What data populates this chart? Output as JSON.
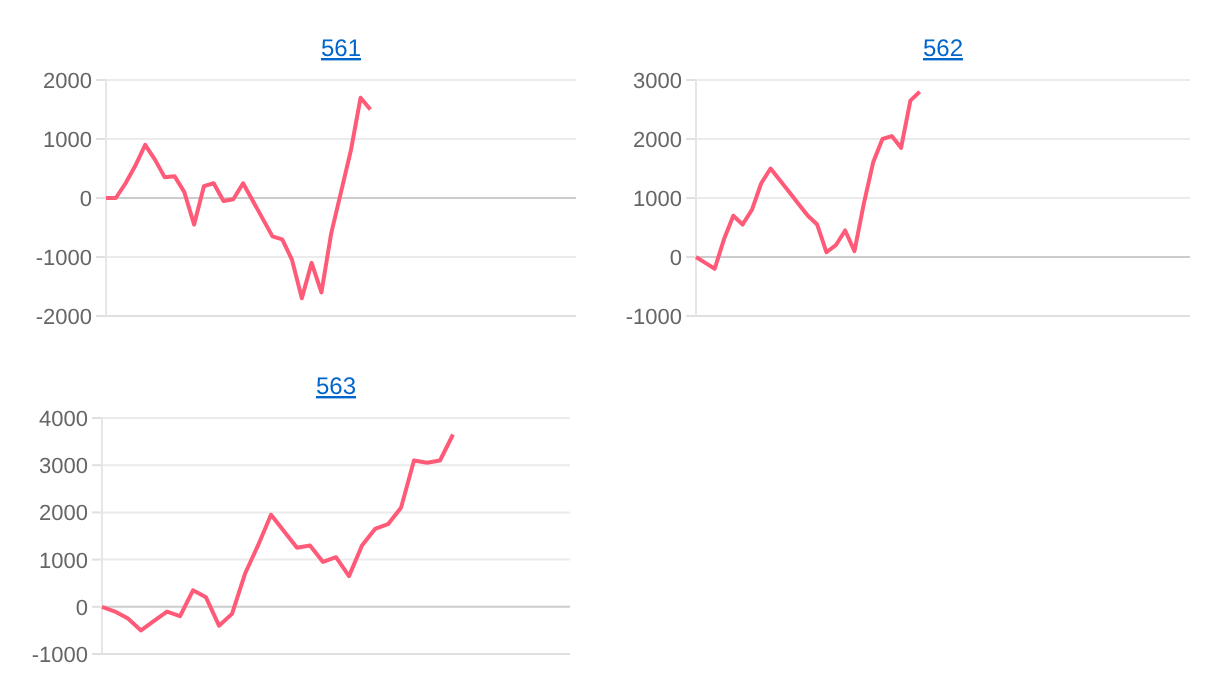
{
  "chart_data": [
    {
      "type": "line",
      "title": "561",
      "categories": [
        null,
        null,
        null,
        null,
        null,
        null,
        null,
        null,
        null,
        null,
        null,
        null,
        null,
        null,
        null,
        null,
        null,
        null,
        null,
        null,
        null,
        null,
        null,
        null,
        null,
        null,
        null,
        null,
        null,
        null,
        null,
        null,
        null,
        null,
        null,
        null,
        null,
        null,
        null,
        null,
        null,
        null,
        null,
        null,
        null,
        null,
        null,
        null,
        null
      ],
      "series": [
        {
          "color": "#ff5a78",
          "values": [
            0,
            0,
            250,
            550,
            900,
            650,
            350,
            370,
            100,
            -450,
            200,
            250,
            -50,
            -20,
            250,
            -50,
            -350,
            -650,
            -700,
            -1050,
            -1700,
            -1100,
            -1600,
            -600,
            100,
            800,
            1700,
            1500,
            null,
            null,
            null,
            null,
            null,
            null,
            null,
            null,
            null,
            null,
            null,
            null,
            null,
            null,
            null,
            null,
            null,
            null,
            null,
            null,
            null
          ]
        }
      ],
      "ylim": [
        -2000,
        2000
      ],
      "yticks": [
        -2000,
        -1000,
        0,
        1000,
        2000
      ],
      "grid": "y",
      "tick_labels": "y",
      "marker": "none",
      "line_style": "solid"
    },
    {
      "type": "line",
      "title": "562",
      "categories": [
        null,
        null,
        null,
        null,
        null,
        null,
        null,
        null,
        null,
        null,
        null,
        null,
        null,
        null,
        null,
        null,
        null,
        null,
        null,
        null,
        null,
        null,
        null,
        null,
        null,
        null,
        null,
        null,
        null,
        null,
        null,
        null,
        null,
        null,
        null,
        null,
        null,
        null,
        null,
        null,
        null,
        null,
        null,
        null,
        null,
        null,
        null,
        null,
        null,
        null,
        null,
        null,
        null,
        null
      ],
      "series": [
        {
          "color": "#ff5a78",
          "values": [
            0,
            -100,
            -200,
            300,
            700,
            550,
            800,
            1250,
            1500,
            1300,
            1100,
            900,
            700,
            550,
            80,
            200,
            450,
            100,
            900,
            1600,
            2000,
            2050,
            1850,
            2650,
            2800,
            null,
            null,
            null,
            null,
            null,
            null,
            null,
            null,
            null,
            null,
            null,
            null,
            null,
            null,
            null,
            null,
            null,
            null,
            null,
            null,
            null,
            null,
            null,
            null,
            null,
            null,
            null,
            null,
            null
          ]
        }
      ],
      "ylim": [
        -1000,
        3000
      ],
      "yticks": [
        -1000,
        0,
        1000,
        2000,
        3000
      ],
      "grid": "y",
      "tick_labels": "y",
      "marker": "none",
      "line_style": "solid"
    },
    {
      "type": "line",
      "title": "563",
      "categories": [
        null,
        null,
        null,
        null,
        null,
        null,
        null,
        null,
        null,
        null,
        null,
        null,
        null,
        null,
        null,
        null,
        null,
        null,
        null,
        null,
        null,
        null,
        null,
        null,
        null,
        null,
        null,
        null,
        null,
        null,
        null,
        null,
        null,
        null,
        null,
        null,
        null
      ],
      "series": [
        {
          "color": "#ff5a78",
          "values": [
            0,
            -100,
            -250,
            -500,
            -300,
            -100,
            -200,
            350,
            200,
            -400,
            -150,
            700,
            1300,
            1950,
            1600,
            1250,
            1300,
            950,
            1050,
            650,
            1300,
            1650,
            1750,
            2100,
            3100,
            3050,
            3100,
            3650,
            null,
            null,
            null,
            null,
            null,
            null,
            null,
            null,
            null
          ]
        }
      ],
      "ylim": [
        -1000,
        4000
      ],
      "yticks": [
        -1000,
        0,
        1000,
        2000,
        3000,
        4000
      ],
      "grid": "y",
      "tick_labels": "y",
      "marker": "none",
      "line_style": "solid"
    }
  ]
}
